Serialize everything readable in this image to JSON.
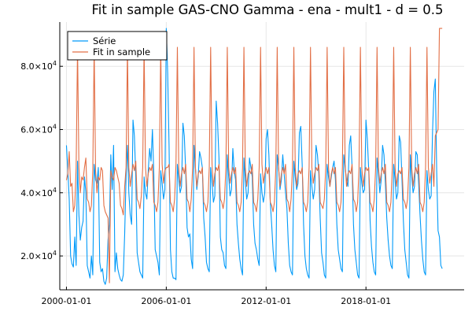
{
  "chart_data": {
    "type": "line",
    "title": "Fit in sample GAS-CNO Gamma - ena - mult1 - d = 0.5",
    "xlabel": "",
    "ylabel": "",
    "x_tick_labels": [
      "2000-01-01",
      "2006-01-01",
      "2012-01-01",
      "2018-01-01"
    ],
    "x_tick_values": [
      2000,
      2006,
      2012,
      2018
    ],
    "y_tick_labels": [
      {
        "mantissa": "2.0",
        "base": "×10",
        "exp": "4",
        "value": 20000
      },
      {
        "mantissa": "4.0",
        "base": "×10",
        "exp": "4",
        "value": 40000
      },
      {
        "mantissa": "6.0",
        "base": "×10",
        "exp": "4",
        "value": 60000
      },
      {
        "mantissa": "8.0",
        "base": "×10",
        "exp": "4",
        "value": 80000
      }
    ],
    "xlim": [
      1999.6,
      2023.9
    ],
    "ylim": [
      9300,
      94000
    ],
    "grid": true,
    "legend_position": "top-left",
    "series": [
      {
        "name": "Série",
        "color": "#009af9",
        "start": 2000.0,
        "step_months": 1,
        "description_values": "monthly observations",
        "values": [
          55000,
          47000,
          38000,
          20000,
          17500,
          16500,
          26000,
          17000,
          50000,
          33000,
          25000,
          29000,
          31000,
          45000,
          40000,
          17000,
          15000,
          13000,
          20000,
          14000,
          49000,
          44000,
          43000,
          48000,
          18000,
          15000,
          16000,
          12000,
          11000,
          13000,
          25000,
          30000,
          52000,
          41000,
          55000,
          15000,
          21000,
          16000,
          14000,
          12500,
          12000,
          14000,
          27000,
          45000,
          55000,
          40000,
          33000,
          30000,
          63000,
          58000,
          45000,
          21000,
          18000,
          15000,
          14000,
          13000,
          45000,
          40000,
          38000,
          47000,
          54000,
          50000,
          60000,
          46000,
          22000,
          20000,
          18000,
          14000,
          47000,
          43000,
          38000,
          41000,
          92000,
          78000,
          55000,
          22000,
          15000,
          13000,
          13000,
          12500,
          49000,
          44000,
          40000,
          42000,
          62000,
          58000,
          47000,
          29000,
          26000,
          27000,
          19000,
          16000,
          55000,
          48000,
          41000,
          45000,
          53000,
          51000,
          48000,
          32000,
          26000,
          18000,
          16000,
          15000,
          48000,
          43000,
          37000,
          39000,
          69000,
          62000,
          51000,
          26000,
          22000,
          21000,
          17000,
          16000,
          52000,
          45000,
          39000,
          41000,
          54000,
          47000,
          44000,
          30000,
          24000,
          19000,
          16000,
          14000,
          51000,
          44000,
          38000,
          40000,
          51000,
          48000,
          45000,
          30000,
          24000,
          22000,
          19000,
          17000,
          46000,
          40000,
          37000,
          40000,
          57000,
          60000,
          52000,
          37000,
          30000,
          22000,
          17000,
          15000,
          52000,
          48000,
          41000,
          44000,
          52000,
          46000,
          40000,
          35000,
          24000,
          17000,
          15000,
          14000,
          50000,
          45000,
          41000,
          43000,
          59000,
          61000,
          49000,
          30000,
          20000,
          16000,
          14000,
          13000,
          47000,
          42000,
          38000,
          41000,
          55000,
          52000,
          46000,
          32000,
          21000,
          18000,
          14000,
          13000,
          49000,
          45000,
          42000,
          45000,
          48000,
          50000,
          44000,
          30000,
          22000,
          19000,
          16000,
          15000,
          52000,
          48000,
          44000,
          42000,
          55000,
          58000,
          48000,
          30000,
          22000,
          18000,
          14000,
          13000,
          48000,
          43000,
          40000,
          41000,
          63000,
          57000,
          47000,
          31000,
          23000,
          18000,
          15000,
          14000,
          51000,
          46000,
          40000,
          44000,
          55000,
          52000,
          43000,
          32000,
          25000,
          20000,
          17000,
          16000,
          49000,
          44000,
          38000,
          40000,
          58000,
          56000,
          44000,
          31000,
          22000,
          18000,
          14000,
          13000,
          52000,
          45000,
          40000,
          42000,
          53000,
          52000,
          43000,
          33000,
          25000,
          19000,
          15000,
          14000,
          47000,
          41000,
          38000,
          39000,
          59000,
          72000,
          76000,
          47000,
          28000,
          26000,
          17000,
          16000
        ]
      },
      {
        "name": "Fit in sample",
        "color": "#e26f46",
        "start": 2000.0,
        "step_months": 1,
        "values": [
          44000,
          46000,
          53000,
          42000,
          43000,
          34000,
          36000,
          48000,
          86000,
          48000,
          40000,
          45000,
          44000,
          48000,
          51000,
          38000,
          37000,
          34000,
          36000,
          47000,
          86000,
          47000,
          40000,
          45000,
          44000,
          48000,
          47000,
          36000,
          34000,
          33000,
          32000,
          11500,
          47000,
          45000,
          44000,
          48000,
          47000,
          45000,
          43000,
          36000,
          35000,
          33000,
          42000,
          48000,
          86000,
          48000,
          42000,
          46000,
          49000,
          47000,
          50000,
          38000,
          37000,
          35000,
          39000,
          48000,
          86000,
          48000,
          42000,
          46000,
          48000,
          47000,
          49000,
          37000,
          36000,
          34000,
          37000,
          48000,
          86000,
          49000,
          43000,
          47000,
          48000,
          48000,
          49000,
          37000,
          36000,
          34000,
          38000,
          49000,
          86000,
          48000,
          42000,
          46000,
          48000,
          46000,
          49000,
          38000,
          37000,
          34000,
          38000,
          48000,
          86000,
          48000,
          42000,
          46000,
          47000,
          46000,
          48000,
          37000,
          36000,
          34000,
          37000,
          48000,
          86000,
          49000,
          42000,
          46000,
          48000,
          47000,
          49000,
          38000,
          37000,
          35000,
          38000,
          48000,
          86000,
          48000,
          43000,
          46000,
          48000,
          46000,
          48000,
          37000,
          36000,
          34000,
          37000,
          48000,
          86000,
          48000,
          42000,
          46000,
          47000,
          46000,
          49000,
          37000,
          36000,
          34000,
          38000,
          48000,
          86000,
          49000,
          43000,
          46000,
          48000,
          46000,
          48000,
          37000,
          36000,
          34000,
          37000,
          48000,
          86000,
          48000,
          42000,
          46000,
          48000,
          46000,
          49000,
          38000,
          37000,
          34000,
          38000,
          48000,
          86000,
          48000,
          42000,
          46000,
          47000,
          46000,
          48000,
          37000,
          36000,
          34000,
          37000,
          48000,
          86000,
          48000,
          43000,
          46000,
          48000,
          47000,
          49000,
          37000,
          36000,
          35000,
          38000,
          48000,
          86000,
          48000,
          42000,
          46000,
          48000,
          46000,
          48000,
          37000,
          36000,
          34000,
          37000,
          48000,
          86000,
          49000,
          42000,
          46000,
          47000,
          46000,
          49000,
          38000,
          37000,
          34000,
          37000,
          48000,
          86000,
          48000,
          42000,
          46000,
          48000,
          47000,
          48000,
          37000,
          36000,
          34000,
          38000,
          48000,
          86000,
          48000,
          43000,
          46000,
          48000,
          46000,
          49000,
          37000,
          36000,
          34000,
          37000,
          48000,
          86000,
          48000,
          42000,
          46000,
          47000,
          46000,
          48000,
          38000,
          37000,
          35000,
          38000,
          48000,
          86000,
          48000,
          42000,
          46000,
          48000,
          46000,
          49000,
          37000,
          36000,
          34000,
          37000,
          48000,
          86000,
          48000,
          43000,
          46000,
          49000,
          42000,
          58000,
          59000,
          60000,
          92000,
          92000,
          92000
        ]
      }
    ]
  }
}
